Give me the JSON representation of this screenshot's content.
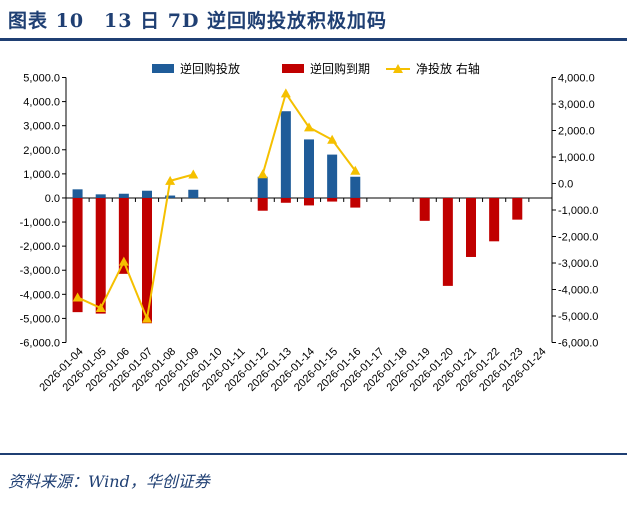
{
  "figure": {
    "title": "图表 10　13 日 7D 逆回购投放积极加码",
    "source": "资料来源：Wind，华创证券"
  },
  "chart_data": {
    "type": "bar",
    "categories": [
      "2026-01-04",
      "2026-01-05",
      "2026-01-06",
      "2026-01-07",
      "2026-01-08",
      "2026-01-09",
      "2026-01-10",
      "2026-01-11",
      "2026-01-12",
      "2026-01-13",
      "2026-01-14",
      "2026-01-15",
      "2026-01-16",
      "2026-01-17",
      "2026-01-18",
      "2026-01-19",
      "2026-01-20",
      "2026-01-21",
      "2026-01-22",
      "2026-01-23",
      "2026-01-24"
    ],
    "series": [
      {
        "name": "逆回购投放",
        "type": "bar",
        "axis": "left",
        "color": "#1f5c99",
        "values": [
          358,
          150,
          175,
          300,
          100,
          340,
          null,
          null,
          880,
          3600,
          2430,
          1800,
          880,
          null,
          null,
          null,
          null,
          null,
          null,
          null,
          null
        ]
      },
      {
        "name": "逆回购到期",
        "type": "bar",
        "axis": "left",
        "color": "#c00000",
        "values": [
          -4740,
          -4800,
          -3150,
          -5200,
          null,
          null,
          null,
          null,
          -530,
          -200,
          -310,
          -150,
          -400,
          null,
          null,
          -950,
          -3650,
          -2450,
          -1800,
          -900,
          null
        ]
      },
      {
        "name": "净投放 右轴",
        "type": "line",
        "axis": "right",
        "color": "#f5c000",
        "values": [
          -4300,
          -4700,
          -2950,
          -5100,
          100,
          340,
          null,
          null,
          350,
          3400,
          2120,
          1650,
          480,
          null,
          null,
          null,
          null,
          null,
          null,
          null,
          null
        ]
      }
    ],
    "left_axis": {
      "min": -6000,
      "max": 5000,
      "step": 1000,
      "tick_labels": [
        "5,000.0",
        "4,000.0",
        "3,000.0",
        "2,000.0",
        "1,000.0",
        "0.0",
        "-1,000.0",
        "-2,000.0",
        "-3,000.0",
        "-4,000.0",
        "-5,000.0",
        "-6,000.0"
      ]
    },
    "right_axis": {
      "min": -6000,
      "max": 4000,
      "step": 1000,
      "tick_labels": [
        "4,000.0",
        "3,000.0",
        "2,000.0",
        "1,000.0",
        "0.0",
        "-1,000.0",
        "-2,000.0",
        "-3,000.0",
        "-4,000.0",
        "-5,000.0",
        "-6,000.0"
      ]
    },
    "legend_position": "top"
  }
}
